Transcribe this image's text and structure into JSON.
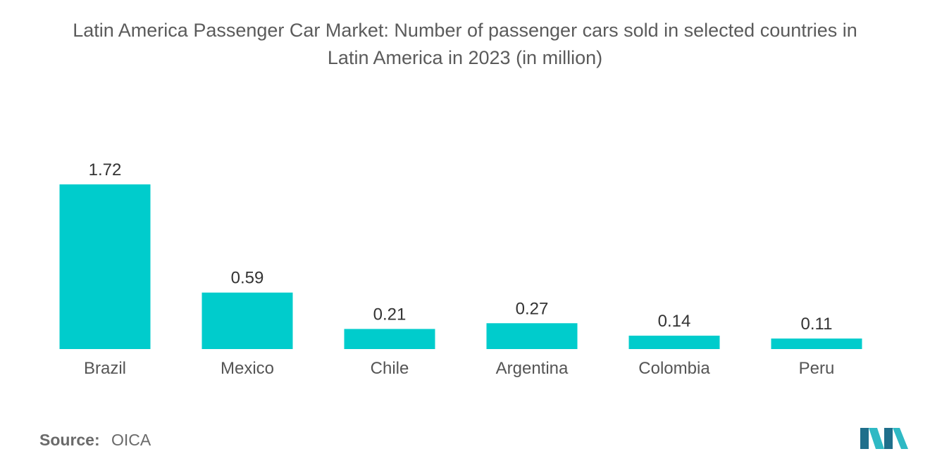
{
  "chart_data": {
    "type": "bar",
    "title_lines": [
      "Latin America Passenger Car Market: Number of passenger cars sold in selected countries in",
      "Latin America in 2023 (in million)"
    ],
    "categories": [
      "Brazil",
      "Mexico",
      "Chile",
      "Argentina",
      "Colombia",
      "Peru"
    ],
    "values": [
      1.72,
      0.59,
      0.21,
      0.27,
      0.14,
      0.11
    ],
    "value_labels": [
      "1.72",
      "0.59",
      "0.21",
      "0.27",
      "0.14",
      "0.11"
    ],
    "xlabel": "",
    "ylabel": "",
    "ylim": [
      0,
      1.72
    ],
    "grid": false,
    "legend": "none",
    "bar_color": "#00cccc"
  },
  "source": {
    "label": "Source:",
    "value": "OICA"
  },
  "brand": {
    "logo_icon": "mordor-intelligence-logo-icon",
    "colors": [
      "#1f6f8b",
      "#2fb9c4"
    ]
  }
}
